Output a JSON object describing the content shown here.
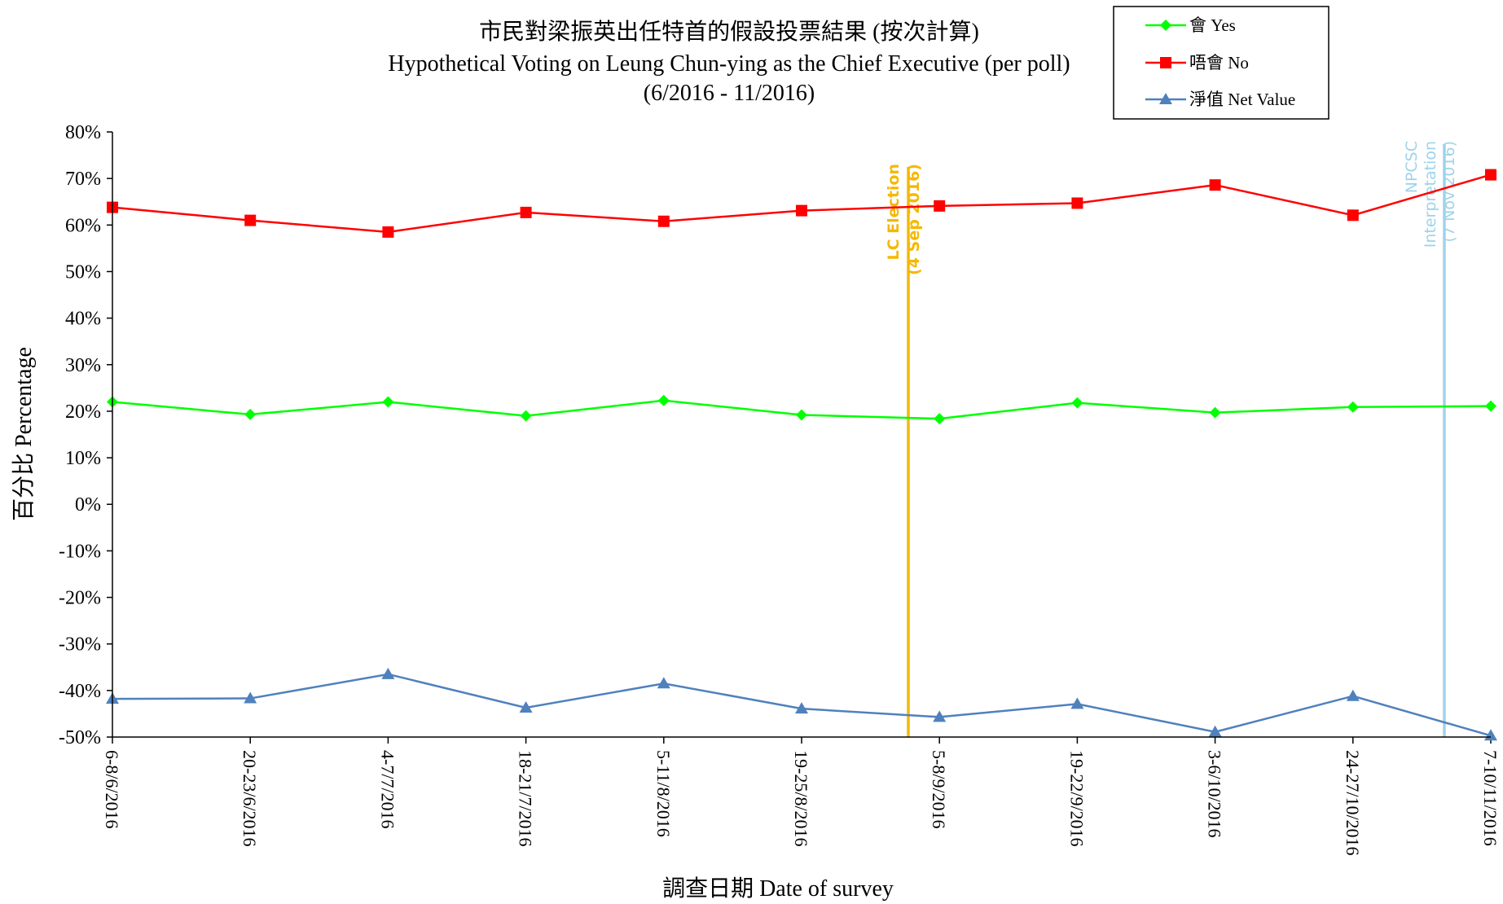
{
  "chart_data": {
    "type": "line",
    "title": "市民對梁振英出任特首的假設投票結果 (按次計算)",
    "subtitle": "Hypothetical Voting on Leung Chun-ying as the Chief Executive (per poll)",
    "subtitle2": "(6/2016 - 11/2016)",
    "xlabel": "調查日期 Date of survey",
    "ylabel": "百分比 Percentage",
    "ylim": [
      -0.5,
      0.8
    ],
    "yticks": [
      0.8,
      0.7,
      0.6,
      0.5,
      0.4,
      0.3,
      0.2,
      0.1,
      0.0,
      -0.1,
      -0.2,
      -0.3,
      -0.4,
      -0.5
    ],
    "ytick_labels": [
      "80%",
      "70%",
      "60%",
      "50%",
      "40%",
      "30%",
      "20%",
      "10%",
      "0%",
      "-10%",
      "-20%",
      "-30%",
      "-40%",
      "-50%"
    ],
    "categories": [
      "6-8/6/2016",
      "20-23/6/2016",
      "4-7/7/2016",
      "18-21/7/2016",
      "5-11/8/2016",
      "19-25/8/2016",
      "5-8/9/2016",
      "19-22/9/2016",
      "3-6/10/2016",
      "24-27/10/2016",
      "7-10/11/2016"
    ],
    "series": [
      {
        "name": "會 Yes",
        "color": "#00ff00",
        "marker": "diamond",
        "values": [
          0.22,
          0.193,
          0.22,
          0.19,
          0.223,
          0.192,
          0.184,
          0.218,
          0.197,
          0.209,
          0.211
        ]
      },
      {
        "name": "唔會 No",
        "color": "#ff0000",
        "marker": "square",
        "values": [
          0.638,
          0.61,
          0.585,
          0.627,
          0.608,
          0.631,
          0.641,
          0.647,
          0.686,
          0.621,
          0.708
        ]
      },
      {
        "name": "淨值 Net Value",
        "color": "#4f81bd",
        "marker": "triangle",
        "values": [
          -0.418,
          -0.417,
          -0.365,
          -0.437,
          -0.385,
          -0.439,
          -0.457,
          -0.429,
          -0.489,
          -0.412,
          -0.497
        ]
      }
    ],
    "legend_position": "top-right",
    "annotations": [
      {
        "line1": "LC Election",
        "line2": "(4 Sep 2016)",
        "color": "#f5b800",
        "between": [
          "19-25/8/2016",
          "5-8/9/2016"
        ]
      },
      {
        "line1": "NPCSC",
        "line2": "Interpretation",
        "line3": "(7 Nov 2016)",
        "color": "#9fd3ea",
        "between": [
          "24-27/10/2016",
          "7-10/11/2016"
        ]
      }
    ]
  }
}
